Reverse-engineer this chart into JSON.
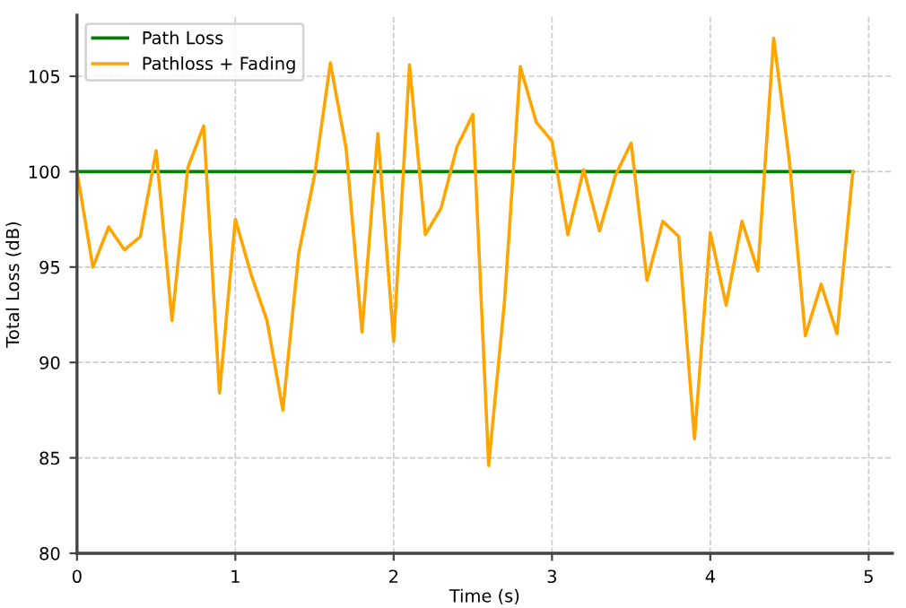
{
  "chart_data": {
    "type": "line",
    "xlabel": "Time (s)",
    "ylabel": "Total Loss (dB)",
    "x": [
      0,
      0.1,
      0.2,
      0.3,
      0.4,
      0.5,
      0.6,
      0.7,
      0.8,
      0.9,
      1.0,
      1.1,
      1.2,
      1.3,
      1.4,
      1.5,
      1.6,
      1.7,
      1.8,
      1.9,
      2.0,
      2.1,
      2.2,
      2.3,
      2.4,
      2.5,
      2.6,
      2.7,
      2.8,
      2.9,
      3.0,
      3.1,
      3.2,
      3.3,
      3.4,
      3.5,
      3.6,
      3.7,
      3.8,
      3.9,
      4.0,
      4.1,
      4.2,
      4.3,
      4.4,
      4.5,
      4.6,
      4.7,
      4.8,
      4.9
    ],
    "series": [
      {
        "name": "Path Loss",
        "color": "#008000",
        "values": [
          100,
          100,
          100,
          100,
          100,
          100,
          100,
          100,
          100,
          100,
          100,
          100,
          100,
          100,
          100,
          100,
          100,
          100,
          100,
          100,
          100,
          100,
          100,
          100,
          100,
          100,
          100,
          100,
          100,
          100,
          100,
          100,
          100,
          100,
          100,
          100,
          100,
          100,
          100,
          100,
          100,
          100,
          100,
          100,
          100,
          100,
          100,
          100,
          100,
          100
        ]
      },
      {
        "name": "Pathloss + Fading",
        "color": "#ffa500",
        "values": [
          100.0,
          95.0,
          97.1,
          95.9,
          96.6,
          101.1,
          92.2,
          100.2,
          102.4,
          88.4,
          97.5,
          94.6,
          92.2,
          87.5,
          95.7,
          99.8,
          105.7,
          101.2,
          91.6,
          102.0,
          91.1,
          105.6,
          96.7,
          98.1,
          101.3,
          103.0,
          84.6,
          93.2,
          105.5,
          102.6,
          101.6,
          96.7,
          100.1,
          96.9,
          99.8,
          101.5,
          94.3,
          97.4,
          96.6,
          86.0,
          96.8,
          93.0,
          97.4,
          94.8,
          107.0,
          100.5,
          91.4,
          94.1,
          91.5,
          100.0
        ]
      }
    ],
    "xlim": [
      0,
      5.15
    ],
    "ylim": [
      80,
      108.2
    ],
    "xticks": [
      0,
      1,
      2,
      3,
      4,
      5
    ],
    "yticks": [
      80,
      85,
      90,
      95,
      100,
      105
    ],
    "grid": true,
    "legend": "top left",
    "line_style": "solid",
    "marker": "none"
  }
}
